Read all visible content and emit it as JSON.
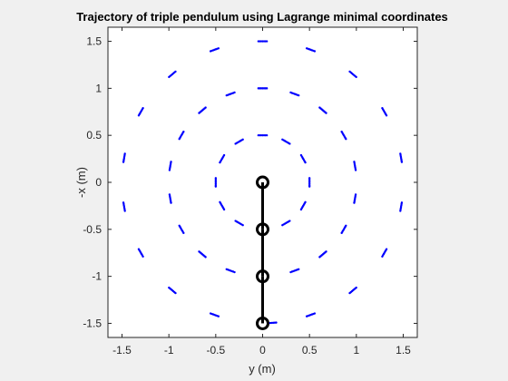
{
  "chart_data": {
    "type": "scatter",
    "title": "Trajectory of triple pendulum using Lagrange minimal coordinates",
    "xlabel": "y (m)",
    "ylabel": "-x (m)",
    "xlim": [
      -1.65,
      1.65
    ],
    "ylim": [
      -1.65,
      1.65
    ],
    "xticks": [
      -1.5,
      -1,
      -0.5,
      0,
      0.5,
      1,
      1.5
    ],
    "xtick_labels": [
      "-1.5",
      "-1",
      "-0.5",
      "0",
      "0.5",
      "1",
      "1.5"
    ],
    "yticks": [
      1.5,
      1,
      0.5,
      0,
      -0.5,
      -1,
      -1.5
    ],
    "ytick_labels": [
      "1.5",
      "1",
      "0.5",
      "0",
      "-0.5",
      "-1",
      "-1.5"
    ],
    "grid": false,
    "colors": {
      "trajectory": "#0000ff",
      "pendulum": "#000000",
      "axes_bg": "#ffffff",
      "figure_bg": "#f0f0f0"
    },
    "series": [
      {
        "values": [
          {
            "x": 0.0,
            "y": 0.5
          },
          {
            "x": 0.25,
            "y": 0.433
          },
          {
            "x": 0.433,
            "y": 0.25
          },
          {
            "x": 0.5,
            "y": 0.0
          },
          {
            "x": 0.433,
            "y": -0.25
          },
          {
            "x": 0.25,
            "y": -0.433
          },
          {
            "x": -0.25,
            "y": -0.433
          },
          {
            "x": -0.433,
            "y": -0.25
          },
          {
            "x": -0.5,
            "y": 0.0
          },
          {
            "x": -0.433,
            "y": 0.25
          },
          {
            "x": -0.25,
            "y": 0.433
          },
          {
            "x": 0.0,
            "y": 1.0
          },
          {
            "x": 0.342,
            "y": 0.94
          },
          {
            "x": 0.643,
            "y": 0.766
          },
          {
            "x": 0.866,
            "y": 0.5
          },
          {
            "x": 0.985,
            "y": 0.174
          },
          {
            "x": 0.985,
            "y": -0.174
          },
          {
            "x": 0.866,
            "y": -0.5
          },
          {
            "x": 0.643,
            "y": -0.766
          },
          {
            "x": 0.342,
            "y": -0.94
          },
          {
            "x": -0.342,
            "y": -0.94
          },
          {
            "x": -0.643,
            "y": -0.766
          },
          {
            "x": -0.866,
            "y": -0.5
          },
          {
            "x": -0.985,
            "y": -0.174
          },
          {
            "x": -0.985,
            "y": 0.174
          },
          {
            "x": -0.866,
            "y": 0.5
          },
          {
            "x": -0.643,
            "y": 0.766
          },
          {
            "x": -0.342,
            "y": 0.94
          },
          {
            "x": 0.0,
            "y": 1.5
          },
          {
            "x": 0.513,
            "y": 1.41
          },
          {
            "x": 0.964,
            "y": 1.149
          },
          {
            "x": 1.299,
            "y": 0.75
          },
          {
            "x": 1.477,
            "y": 0.26
          },
          {
            "x": 1.477,
            "y": -0.26
          },
          {
            "x": 1.299,
            "y": -0.75
          },
          {
            "x": 0.964,
            "y": -1.149
          },
          {
            "x": 0.513,
            "y": -1.41
          },
          {
            "x": 0.1,
            "y": -1.495
          },
          {
            "x": -0.513,
            "y": -1.41
          },
          {
            "x": -0.964,
            "y": -1.149
          },
          {
            "x": -1.299,
            "y": -0.75
          },
          {
            "x": -1.477,
            "y": -0.26
          },
          {
            "x": -1.477,
            "y": 0.26
          },
          {
            "x": -1.299,
            "y": 0.75
          },
          {
            "x": -0.964,
            "y": 1.149
          },
          {
            "x": -0.513,
            "y": 1.41
          }
        ]
      }
    ],
    "pendulum": {
      "joints": [
        {
          "x": 0,
          "y": 0
        },
        {
          "x": 0,
          "y": -0.5
        },
        {
          "x": 0,
          "y": -1.0
        },
        {
          "x": 0,
          "y": -1.5
        }
      ]
    }
  }
}
